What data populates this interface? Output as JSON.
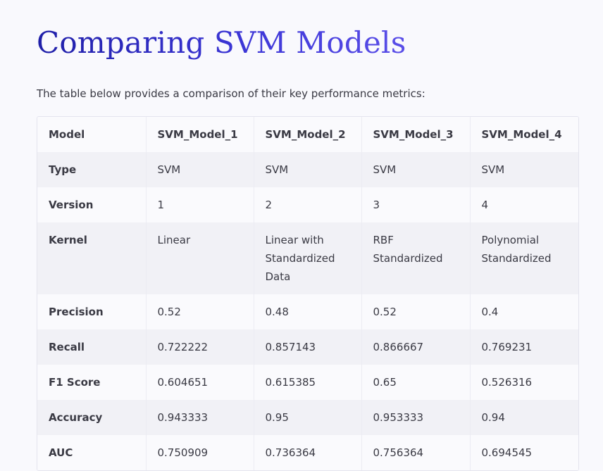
{
  "title": "Comparing SVM Models",
  "intro": "The table below provides a comparison of their key performance metrics:",
  "table": {
    "headers": [
      "Model",
      "SVM_Model_1",
      "SVM_Model_2",
      "SVM_Model_3",
      "SVM_Model_4"
    ],
    "rows": [
      {
        "label": "Type",
        "cells": [
          "SVM",
          "SVM",
          "SVM",
          "SVM"
        ]
      },
      {
        "label": "Version",
        "cells": [
          "1",
          "2",
          "3",
          "4"
        ]
      },
      {
        "label": "Kernel",
        "cells": [
          "Linear",
          "Linear with Standardized Data",
          "RBF Standardized",
          "Polynomial Standardized"
        ]
      },
      {
        "label": "Precision",
        "cells": [
          "0.52",
          "0.48",
          "0.52",
          "0.4"
        ]
      },
      {
        "label": "Recall",
        "cells": [
          "0.722222",
          "0.857143",
          "0.866667",
          "0.769231"
        ]
      },
      {
        "label": "F1 Score",
        "cells": [
          "0.604651",
          "0.615385",
          "0.65",
          "0.526316"
        ]
      },
      {
        "label": "Accuracy",
        "cells": [
          "0.943333",
          "0.95",
          "0.953333",
          "0.94"
        ]
      },
      {
        "label": "AUC",
        "cells": [
          "0.750909",
          "0.736364",
          "0.756364",
          "0.694545"
        ]
      }
    ]
  },
  "colors": {
    "title_start": "#1f1fa8",
    "title_end": "#5a4ee8",
    "stripe": "#f1f1f6",
    "background": "#f9f9fd"
  }
}
